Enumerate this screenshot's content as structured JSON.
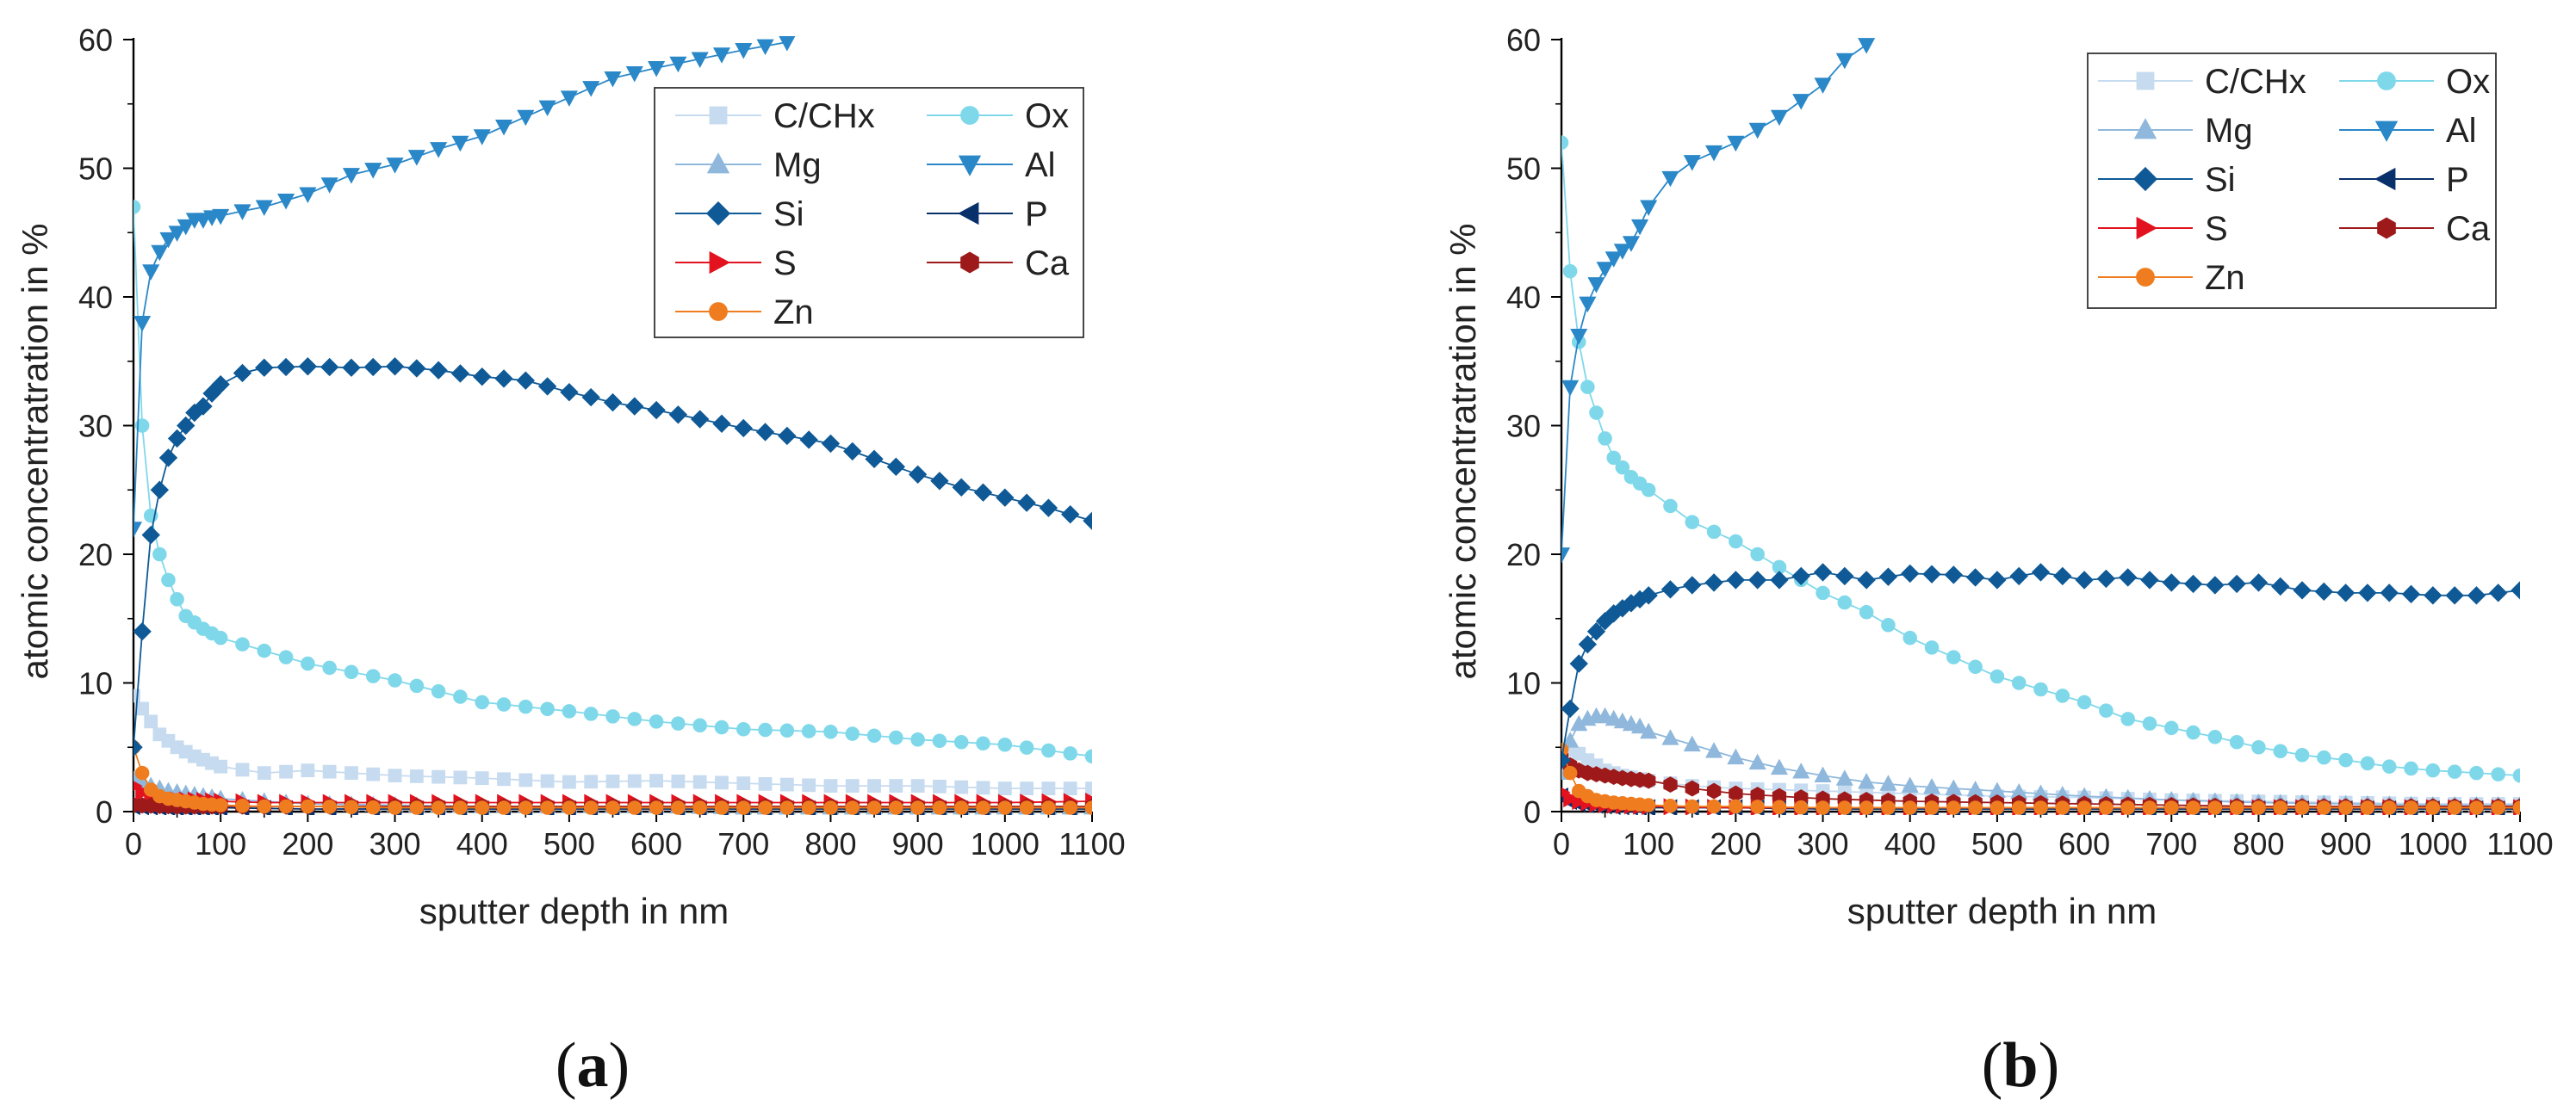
{
  "figure": {
    "panels": [
      {
        "label": "(a)",
        "label_letter": "a"
      },
      {
        "label": "(b)",
        "label_letter": "b"
      }
    ]
  },
  "colors": {
    "C/CHx": "#c6dbef",
    "Ox": "#7fd8ea",
    "Mg": "#8fb8dc",
    "Al": "#2b88c8",
    "Si": "#0f5a96",
    "P": "#08306b",
    "S": "#e3121f",
    "Ca": "#9e1a1a",
    "Zn": "#ef7d1f"
  },
  "chart_data": [
    {
      "type": "line",
      "panel": "(a)",
      "xlabel": "sputter depth in nm",
      "ylabel": "atomic concentratration in %",
      "xlim": [
        0,
        1100
      ],
      "ylim": [
        0,
        60
      ],
      "xticks": [
        0,
        100,
        200,
        300,
        400,
        500,
        600,
        700,
        800,
        900,
        1000,
        1100
      ],
      "yticks": [
        0,
        10,
        20,
        30,
        40,
        50,
        60
      ],
      "legend": [
        "C/CHx",
        "Ox",
        "Mg",
        "Al",
        "Si",
        "P",
        "S",
        "Ca",
        "Zn"
      ],
      "legend_position": "top-right",
      "series": [
        {
          "name": "C/CHx",
          "marker": "square",
          "x": [
            0,
            10,
            20,
            30,
            50,
            70,
            100,
            150,
            200,
            300,
            400,
            500,
            600,
            700,
            800,
            900,
            1000,
            1100
          ],
          "y": [
            9,
            8,
            7,
            6,
            5,
            4.3,
            3.5,
            3.0,
            3.2,
            2.8,
            2.6,
            2.3,
            2.4,
            2.2,
            2.0,
            2.0,
            1.8,
            1.8
          ]
        },
        {
          "name": "Ox",
          "marker": "circle",
          "x": [
            0,
            5,
            10,
            15,
            20,
            30,
            40,
            50,
            60,
            80,
            100,
            150,
            200,
            300,
            400,
            500,
            600,
            700,
            800,
            900,
            1000,
            1100
          ],
          "y": [
            47,
            38,
            30,
            26,
            23,
            20,
            18,
            16.5,
            15.2,
            14.2,
            13.5,
            12.5,
            11.5,
            10.2,
            8.5,
            7.8,
            7.0,
            6.4,
            6.2,
            5.6,
            5.2,
            4.3
          ]
        },
        {
          "name": "Mg",
          "marker": "triangle-up",
          "x": [
            0,
            20,
            40,
            60,
            80,
            100,
            150,
            200,
            300,
            400,
            500,
            600,
            700,
            800,
            900,
            1000,
            1100
          ],
          "y": [
            2.5,
            2.0,
            1.6,
            1.4,
            1.2,
            1.0,
            0.8,
            0.6,
            0.5,
            0.4,
            0.4,
            0.4,
            0.3,
            0.3,
            0.3,
            0.3,
            0.3
          ]
        },
        {
          "name": "Al",
          "marker": "triangle-down",
          "x": [
            0,
            5,
            10,
            15,
            20,
            30,
            40,
            50,
            60,
            70,
            80,
            90,
            100,
            120,
            150,
            200,
            250,
            300,
            350,
            400,
            450,
            500,
            550,
            600,
            650,
            700,
            750,
            770
          ],
          "y": [
            22,
            34,
            38,
            40,
            42,
            43.5,
            44.5,
            45,
            45.5,
            46,
            46,
            46.2,
            46.3,
            46.6,
            47,
            48,
            49.5,
            50.3,
            51.5,
            52.5,
            54,
            55.5,
            57,
            57.8,
            58.5,
            59.2,
            59.8,
            60
          ]
        },
        {
          "name": "Si",
          "marker": "diamond",
          "x": [
            0,
            5,
            10,
            15,
            20,
            30,
            40,
            50,
            60,
            70,
            80,
            90,
            100,
            120,
            150,
            200,
            250,
            300,
            350,
            400,
            450,
            500,
            550,
            600,
            650,
            700,
            750,
            800,
            850,
            900,
            950,
            1000,
            1050,
            1100
          ],
          "y": [
            5,
            9,
            14,
            18,
            21.5,
            25,
            27.5,
            29,
            30,
            31,
            31.5,
            32.5,
            33.2,
            34,
            34.5,
            34.6,
            34.5,
            34.6,
            34.3,
            33.8,
            33.5,
            32.6,
            31.8,
            31.2,
            30.5,
            29.8,
            29.2,
            28.6,
            27.4,
            26.2,
            25.2,
            24.4,
            23.6,
            22.6
          ]
        },
        {
          "name": "P",
          "marker": "triangle-left",
          "x": [
            0,
            50,
            100,
            200,
            300,
            400,
            500,
            600,
            700,
            800,
            900,
            1000,
            1100
          ],
          "y": [
            0.4,
            0.3,
            0.3,
            0.2,
            0.2,
            0.2,
            0.2,
            0.2,
            0.2,
            0.2,
            0.2,
            0.2,
            0.2
          ]
        },
        {
          "name": "S",
          "marker": "triangle-right",
          "x": [
            0,
            10,
            20,
            30,
            50,
            70,
            100,
            150,
            200,
            300,
            400,
            500,
            600,
            700,
            800,
            900,
            1000,
            1100
          ],
          "y": [
            2.0,
            1.5,
            1.2,
            1.0,
            0.9,
            0.9,
            0.8,
            0.7,
            0.7,
            0.7,
            0.7,
            0.7,
            0.7,
            0.7,
            0.7,
            0.7,
            0.7,
            0.8
          ]
        },
        {
          "name": "Ca",
          "marker": "hexagon",
          "x": [
            0,
            50,
            100,
            200,
            300,
            400,
            500,
            600,
            700,
            800,
            900,
            1000,
            1100
          ],
          "y": [
            0.5,
            0.4,
            0.4,
            0.4,
            0.4,
            0.4,
            0.4,
            0.4,
            0.4,
            0.4,
            0.4,
            0.4,
            0.4
          ]
        },
        {
          "name": "Zn",
          "marker": "circle",
          "x": [
            0,
            5,
            10,
            15,
            20,
            30,
            40,
            60,
            80,
            100,
            150,
            200,
            300,
            400,
            500,
            600,
            700,
            800,
            900,
            1000,
            1100
          ],
          "y": [
            5,
            4,
            3,
            2.2,
            1.7,
            1.2,
            1.0,
            0.8,
            0.6,
            0.5,
            0.4,
            0.4,
            0.3,
            0.3,
            0.3,
            0.3,
            0.3,
            0.3,
            0.3,
            0.3,
            0.3
          ]
        }
      ]
    },
    {
      "type": "line",
      "panel": "(b)",
      "xlabel": "sputter depth in nm",
      "ylabel": "atomic concentratration in %",
      "xlim": [
        0,
        1100
      ],
      "ylim": [
        0,
        60
      ],
      "xticks": [
        0,
        100,
        200,
        300,
        400,
        500,
        600,
        700,
        800,
        900,
        1000,
        1100
      ],
      "yticks": [
        0,
        10,
        20,
        30,
        40,
        50,
        60
      ],
      "legend": [
        "C/CHx",
        "Ox",
        "Mg",
        "Al",
        "Si",
        "P",
        "S",
        "Ca",
        "Zn"
      ],
      "legend_position": "top-right",
      "series": [
        {
          "name": "C/CHx",
          "marker": "square",
          "x": [
            0,
            10,
            20,
            30,
            50,
            70,
            100,
            150,
            200,
            300,
            400,
            500,
            600,
            700,
            800,
            900,
            1000,
            1100
          ],
          "y": [
            4.5,
            4.8,
            4.5,
            4.0,
            3.2,
            2.8,
            2.4,
            2.0,
            1.8,
            1.6,
            1.4,
            1.2,
            1.1,
            0.9,
            0.8,
            0.7,
            0.6,
            0.6
          ]
        },
        {
          "name": "Ox",
          "marker": "circle",
          "x": [
            0,
            5,
            10,
            15,
            20,
            30,
            40,
            50,
            60,
            80,
            100,
            150,
            200,
            250,
            300,
            350,
            400,
            450,
            500,
            550,
            600,
            650,
            700,
            750,
            800,
            850,
            900,
            950,
            1000,
            1050,
            1100
          ],
          "y": [
            52,
            46,
            42,
            39,
            36.5,
            33,
            31,
            29,
            27.5,
            26,
            25,
            22.5,
            21,
            19,
            17,
            15.5,
            13.5,
            12,
            10.5,
            9.5,
            8.5,
            7.2,
            6.5,
            5.8,
            5.0,
            4.4,
            4.0,
            3.5,
            3.2,
            3.0,
            2.8
          ]
        },
        {
          "name": "Mg",
          "marker": "triangle-up",
          "x": [
            0,
            10,
            20,
            30,
            40,
            50,
            60,
            70,
            80,
            90,
            100,
            150,
            200,
            250,
            300,
            350,
            400,
            500,
            600,
            700,
            800,
            900,
            1000,
            1100
          ],
          "y": [
            3,
            5.5,
            6.8,
            7.2,
            7.4,
            7.4,
            7.2,
            7.0,
            6.8,
            6.6,
            6.2,
            5.2,
            4.2,
            3.4,
            2.8,
            2.3,
            2.0,
            1.6,
            1.2,
            0.9,
            0.7,
            0.6,
            0.5,
            0.5
          ]
        },
        {
          "name": "Al",
          "marker": "triangle-down",
          "x": [
            0,
            5,
            10,
            15,
            20,
            30,
            40,
            50,
            60,
            70,
            80,
            90,
            100,
            120,
            150,
            200,
            250,
            300,
            330,
            350
          ],
          "y": [
            20,
            27,
            33,
            35,
            37,
            39.5,
            41,
            42.2,
            43,
            43.6,
            44.2,
            45.5,
            47,
            49,
            50.5,
            52,
            54,
            56.5,
            58.8,
            59.6
          ]
        },
        {
          "name": "Si",
          "marker": "diamond",
          "x": [
            0,
            5,
            10,
            15,
            20,
            30,
            40,
            50,
            60,
            70,
            80,
            90,
            100,
            120,
            150,
            200,
            250,
            300,
            350,
            400,
            450,
            500,
            550,
            600,
            650,
            700,
            750,
            800,
            850,
            900,
            950,
            1000,
            1050,
            1100
          ],
          "y": [
            4,
            6,
            8,
            10,
            11.5,
            13,
            14,
            14.8,
            15.4,
            15.8,
            16.2,
            16.5,
            16.8,
            17.2,
            17.6,
            18,
            18,
            18.6,
            18,
            18.5,
            18.4,
            18,
            18.6,
            18,
            18.2,
            17.8,
            17.6,
            17.8,
            17.2,
            17,
            17,
            16.8,
            16.8,
            17.2
          ]
        },
        {
          "name": "P",
          "marker": "triangle-left",
          "x": [
            0,
            10,
            20,
            40,
            60,
            100,
            200,
            300,
            400,
            500,
            600,
            700,
            800,
            900,
            1000,
            1100
          ],
          "y": [
            1.2,
            0.8,
            0.6,
            0.5,
            0.4,
            0.3,
            0.3,
            0.2,
            0.2,
            0.2,
            0.2,
            0.2,
            0.2,
            0.2,
            0.2,
            0.2
          ]
        },
        {
          "name": "S",
          "marker": "triangle-right",
          "x": [
            0,
            10,
            20,
            40,
            60,
            100,
            200,
            300,
            400,
            500,
            600,
            700,
            800,
            900,
            1000,
            1100
          ],
          "y": [
            1.5,
            1.0,
            0.8,
            0.6,
            0.5,
            0.4,
            0.3,
            0.3,
            0.3,
            0.3,
            0.3,
            0.3,
            0.3,
            0.3,
            0.3,
            0.3
          ]
        },
        {
          "name": "Ca",
          "marker": "hexagon",
          "x": [
            0,
            5,
            10,
            20,
            30,
            50,
            70,
            100,
            150,
            200,
            250,
            300,
            350,
            400,
            500,
            600,
            700,
            800,
            900,
            1000,
            1100
          ],
          "y": [
            4.2,
            4.0,
            3.6,
            3.2,
            3.0,
            2.8,
            2.6,
            2.4,
            1.8,
            1.4,
            1.2,
            1.0,
            0.9,
            0.8,
            0.7,
            0.6,
            0.5,
            0.4,
            0.4,
            0.4,
            0.4
          ]
        },
        {
          "name": "Zn",
          "marker": "circle",
          "x": [
            0,
            5,
            10,
            15,
            20,
            30,
            40,
            60,
            80,
            100,
            150,
            200,
            300,
            400,
            500,
            600,
            700,
            800,
            900,
            1000,
            1100
          ],
          "y": [
            4.8,
            4.0,
            3.0,
            2.2,
            1.6,
            1.2,
            0.9,
            0.7,
            0.6,
            0.5,
            0.4,
            0.4,
            0.3,
            0.3,
            0.3,
            0.3,
            0.3,
            0.3,
            0.3,
            0.3,
            0.3
          ]
        }
      ]
    }
  ]
}
